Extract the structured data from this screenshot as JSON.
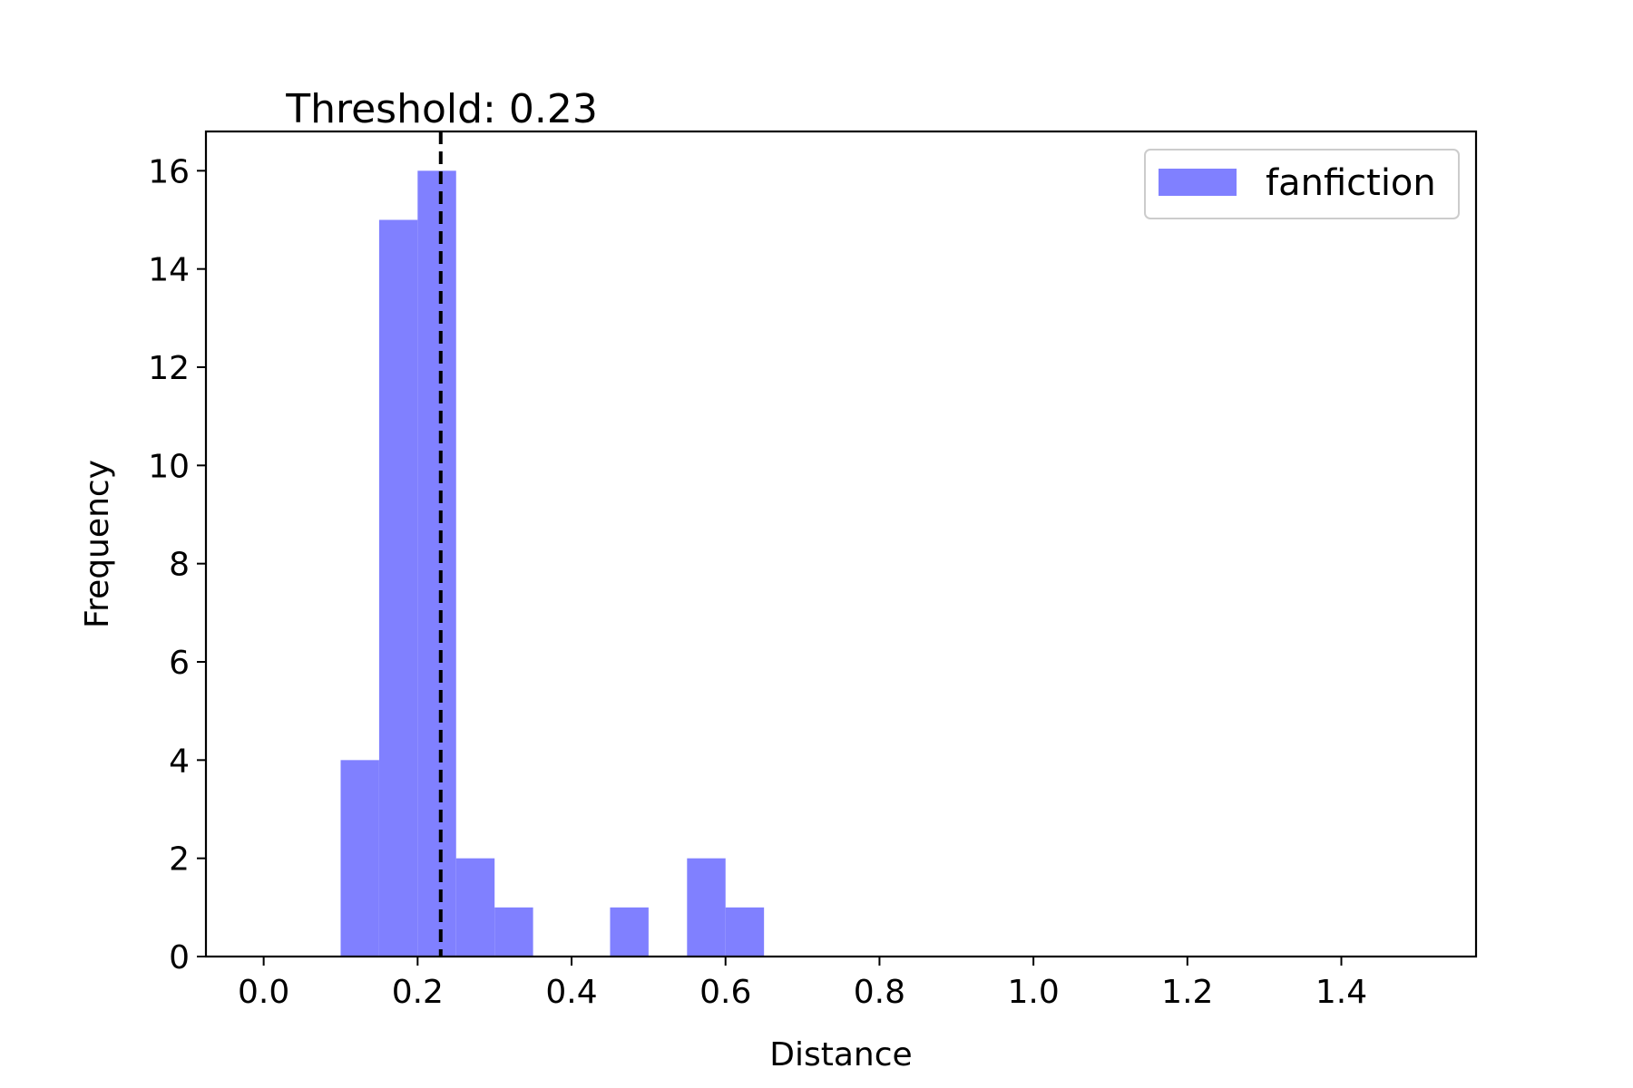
{
  "chart_data": {
    "type": "bar",
    "subtype": "histogram",
    "title": "Threshold: 0.23",
    "xlabel": "Distance",
    "ylabel": "Frequency",
    "xlim": [
      -0.075,
      1.575
    ],
    "ylim": [
      0,
      16.8
    ],
    "xticks": [
      0.0,
      0.2,
      0.4,
      0.6,
      0.8,
      1.0,
      1.2,
      1.4
    ],
    "xtick_labels": [
      "0.0",
      "0.2",
      "0.4",
      "0.6",
      "0.8",
      "1.0",
      "1.2",
      "1.4"
    ],
    "yticks": [
      0,
      2,
      4,
      6,
      8,
      10,
      12,
      14,
      16
    ],
    "ytick_labels": [
      "0",
      "2",
      "4",
      "6",
      "8",
      "10",
      "12",
      "14",
      "16"
    ],
    "grid": false,
    "legend_position": "top-right",
    "series": [
      {
        "name": "fanfiction",
        "color": "#8080ff",
        "bins": [
          {
            "x0": 0.1,
            "x1": 0.15,
            "count": 4
          },
          {
            "x0": 0.15,
            "x1": 0.2,
            "count": 15
          },
          {
            "x0": 0.2,
            "x1": 0.25,
            "count": 16
          },
          {
            "x0": 0.25,
            "x1": 0.3,
            "count": 2
          },
          {
            "x0": 0.3,
            "x1": 0.35,
            "count": 1
          },
          {
            "x0": 0.45,
            "x1": 0.5,
            "count": 1
          },
          {
            "x0": 0.55,
            "x1": 0.6,
            "count": 2
          },
          {
            "x0": 0.6,
            "x1": 0.65,
            "count": 1
          }
        ]
      }
    ],
    "annotations": [
      {
        "type": "vline",
        "x": 0.23,
        "style": "dashed",
        "color": "#000000"
      }
    ]
  }
}
